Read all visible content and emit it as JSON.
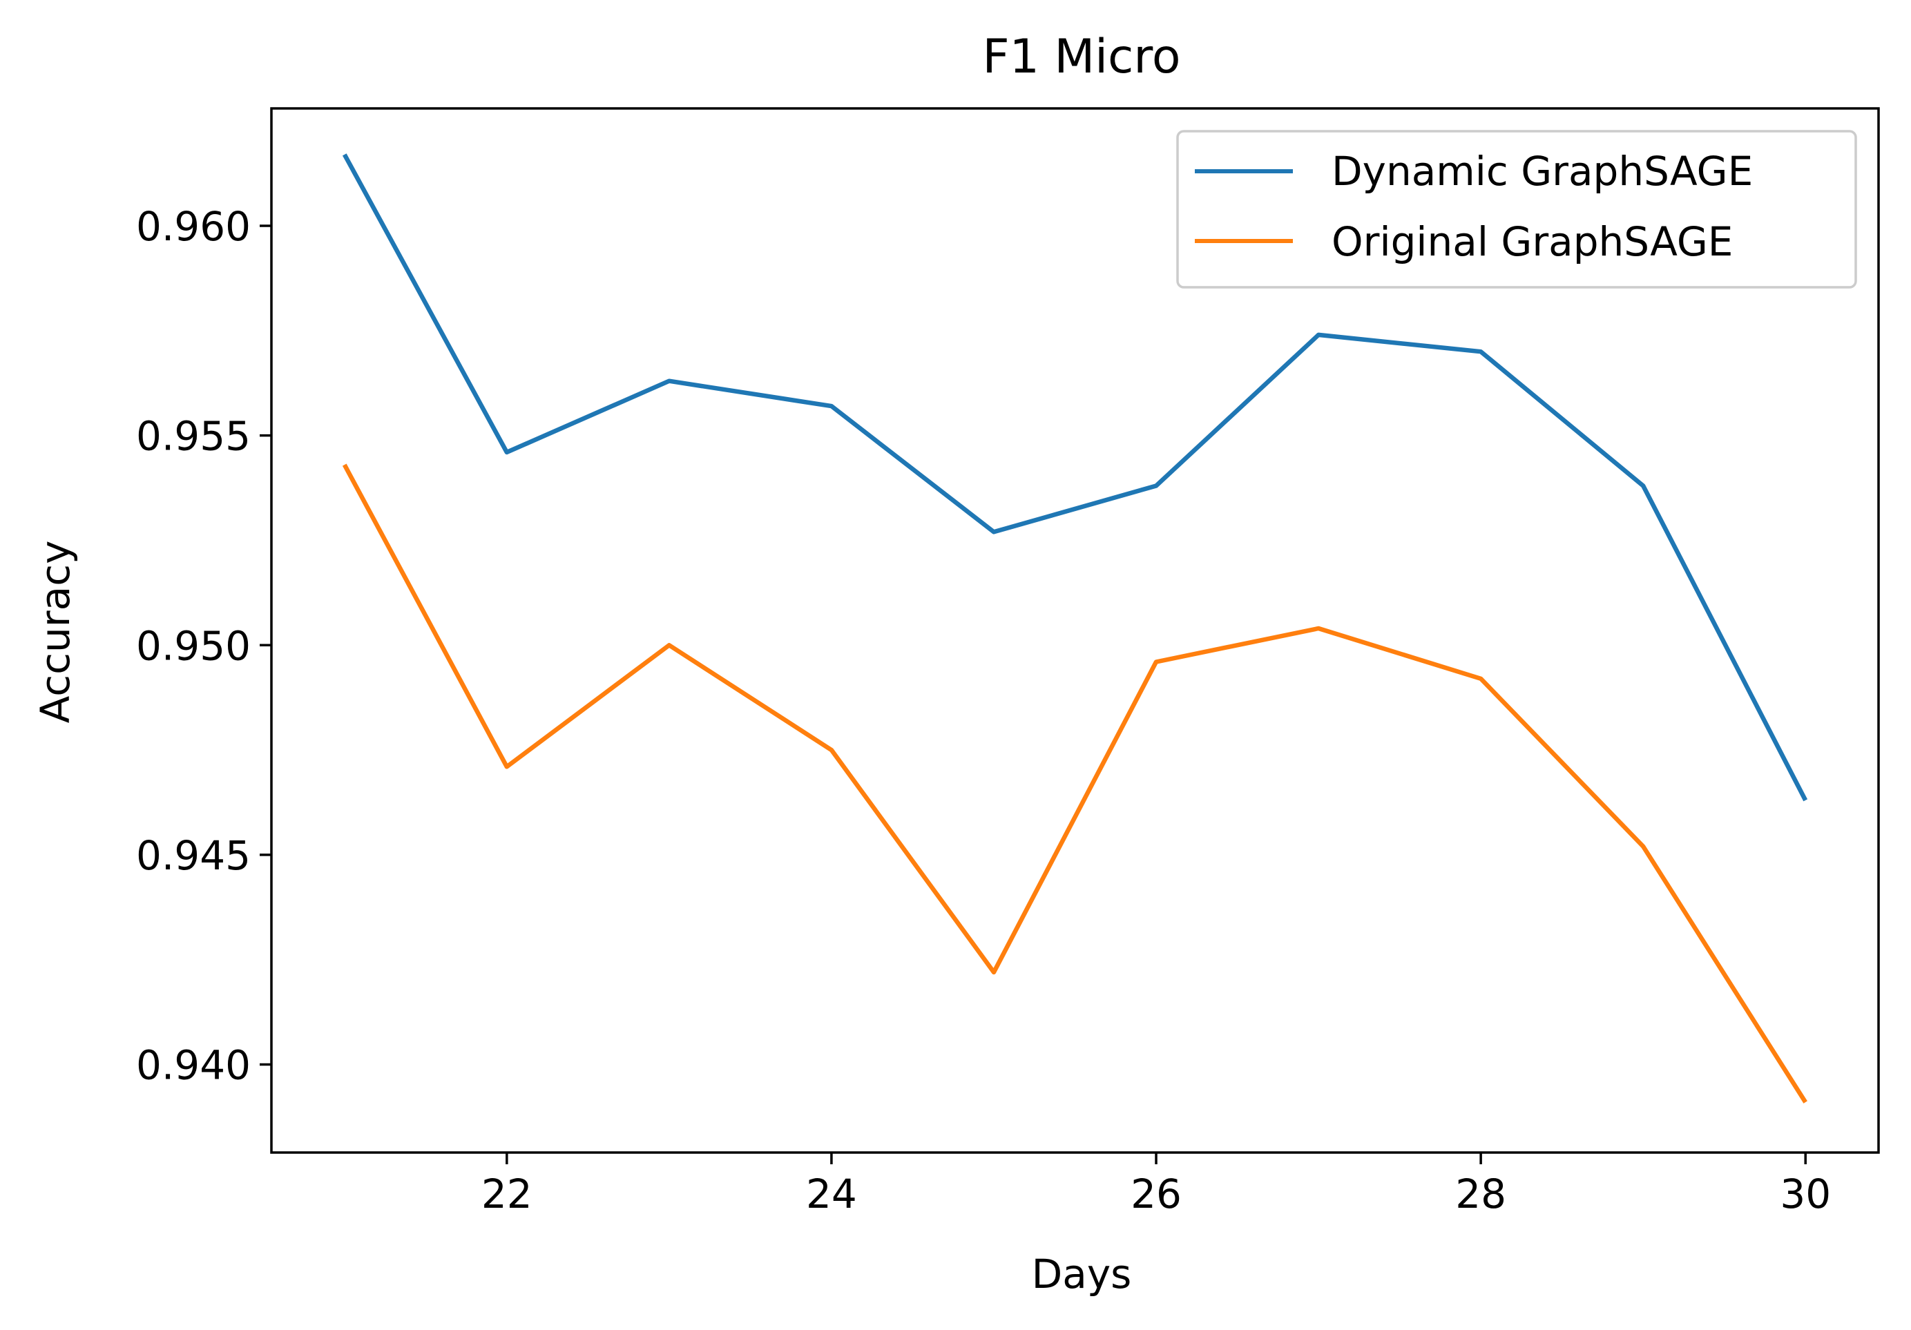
{
  "chart_data": {
    "type": "line",
    "title": "F1 Micro",
    "xlabel": "Days",
    "ylabel": "Accuracy",
    "x": [
      21,
      22,
      23,
      24,
      25,
      26,
      27,
      28,
      29,
      30
    ],
    "xlim": [
      20.55,
      30.45
    ],
    "ylim": [
      0.9379,
      0.9628
    ],
    "x_ticks": [
      22,
      24,
      26,
      28,
      30
    ],
    "x_tick_labels": [
      "22",
      "24",
      "26",
      "28",
      "30"
    ],
    "y_ticks": [
      0.94,
      0.945,
      0.95,
      0.955,
      0.96
    ],
    "y_tick_labels": [
      "0.940",
      "0.945",
      "0.950",
      "0.955",
      "0.960"
    ],
    "grid": false,
    "legend_position": "top-right",
    "series": [
      {
        "name": "Dynamic GraphSAGE",
        "color": "#1f77b4",
        "values": [
          0.9617,
          0.9546,
          0.9563,
          0.9557,
          0.9527,
          0.9538,
          0.9574,
          0.957,
          0.9538,
          0.9463
        ]
      },
      {
        "name": "Original GraphSAGE",
        "color": "#ff7f0e",
        "values": [
          0.9543,
          0.9471,
          0.95,
          0.9475,
          0.9422,
          0.9496,
          0.9504,
          0.9492,
          0.9452,
          0.9391
        ]
      }
    ]
  }
}
